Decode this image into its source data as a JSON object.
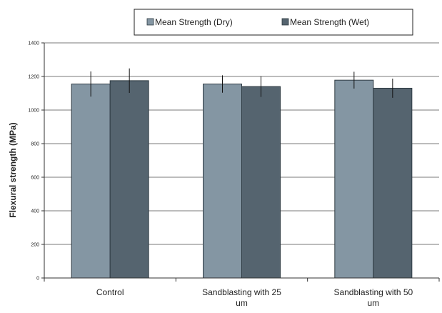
{
  "chart_data": {
    "type": "bar",
    "categories": [
      "Control",
      "Sandblasting with 25 um",
      "Sandblasting with 50 um"
    ],
    "series": [
      {
        "name": "Mean Strength (Dry)",
        "values": [
          1155,
          1155,
          1178
        ],
        "error": [
          75,
          52,
          50
        ],
        "color": "#8496a3"
      },
      {
        "name": "Mean Strength (Wet)",
        "values": [
          1175,
          1140,
          1130
        ],
        "error": [
          73,
          62,
          57
        ],
        "color": "#55646f"
      }
    ],
    "xlabel": "",
    "ylabel": "Flexural strength (MPa)",
    "ylim": [
      0,
      1400
    ],
    "yticks": [
      0,
      200,
      400,
      600,
      800,
      1000,
      1200,
      1400
    ],
    "grid": true,
    "legend": "top"
  }
}
